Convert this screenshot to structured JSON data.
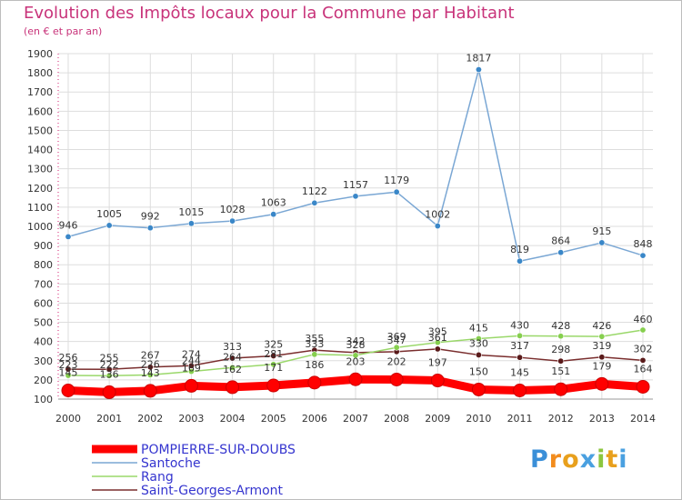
{
  "title": "Evolution des Impôts locaux pour la Commune par Habitant",
  "subtitle": "(en € et par an)",
  "logo_text": "Proxiti",
  "chart_data": {
    "type": "line",
    "title": "Evolution des Impôts locaux pour la Commune par Habitant",
    "subtitle": "(en € et par an)",
    "categories": [
      "2000",
      "2001",
      "2002",
      "2003",
      "2004",
      "2005",
      "2006",
      "2007",
      "2008",
      "2009",
      "2010",
      "2011",
      "2012",
      "2013",
      "2014"
    ],
    "ylim": [
      100,
      1900
    ],
    "yticks": [
      100,
      200,
      300,
      400,
      500,
      600,
      700,
      800,
      900,
      1000,
      1100,
      1200,
      1300,
      1400,
      1500,
      1600,
      1700,
      1800,
      1900
    ],
    "grid": true,
    "legend_position": "bottom-left",
    "series": [
      {
        "name": "POMPIERRE-SUR-DOUBS",
        "color": "#ff0000",
        "marker": "#ff0000",
        "values": [
          145,
          136,
          143,
          169,
          162,
          171,
          186,
          203,
          202,
          197,
          150,
          145,
          151,
          179,
          164
        ]
      },
      {
        "name": "Santoche",
        "color": "#7aa7d4",
        "marker": "#3a87c8",
        "values": [
          946,
          1005,
          992,
          1015,
          1028,
          1063,
          1122,
          1157,
          1179,
          1002,
          1817,
          819,
          864,
          915,
          848
        ]
      },
      {
        "name": "Rang",
        "color": "#9ad86a",
        "marker": "#86cf4e",
        "values": [
          223,
          222,
          226,
          244,
          264,
          281,
          333,
          328,
          369,
          395,
          415,
          430,
          428,
          426,
          460
        ]
      },
      {
        "name": "Saint-Georges-Armont",
        "color": "#7a2e2e",
        "marker": "#5a1a1a",
        "values": [
          256,
          255,
          267,
          274,
          313,
          325,
          355,
          342,
          347,
          361,
          330,
          317,
          298,
          319,
          302
        ]
      }
    ]
  }
}
